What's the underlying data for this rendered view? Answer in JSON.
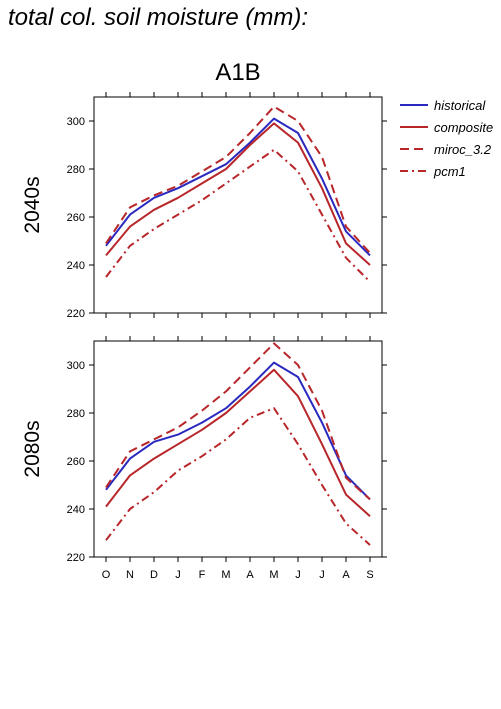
{
  "page": {
    "title": "total col. soil moisture (mm):"
  },
  "chart_data": {
    "type": "line",
    "scenario": "A1B",
    "categories": [
      "O",
      "N",
      "D",
      "J",
      "F",
      "M",
      "A",
      "M",
      "J",
      "J",
      "A",
      "S"
    ],
    "ylim": [
      220,
      310
    ],
    "yticks": [
      220,
      240,
      260,
      280,
      300
    ],
    "legend_position": "right",
    "series_styles": [
      {
        "name": "historical",
        "color": "#2a2ac0",
        "dash": ""
      },
      {
        "name": "composite",
        "color": "#b8262a",
        "dash": ""
      },
      {
        "name": "miroc_3.2",
        "color": "#b8262a",
        "dash": "9,5"
      },
      {
        "name": "pcm1",
        "color": "#b8262a",
        "dash": "8,4,2,4"
      }
    ],
    "panels": [
      {
        "label": "2040s",
        "series": [
          {
            "name": "historical",
            "values": [
              248,
              261,
              268,
              272,
              277,
              282,
              291,
              301,
              295,
              276,
              254,
              244
            ]
          },
          {
            "name": "composite",
            "values": [
              244,
              256,
              263,
              268,
              274,
              280,
              290,
              299,
              291,
              272,
              249,
              240
            ]
          },
          {
            "name": "miroc_3.2",
            "values": [
              249,
              264,
              269,
              273,
              279,
              285,
              295,
              306,
              300,
              285,
              256,
              245
            ]
          },
          {
            "name": "pcm1",
            "values": [
              235,
              248,
              255,
              261,
              267,
              274,
              281,
              288,
              279,
              261,
              243,
              233
            ]
          }
        ]
      },
      {
        "label": "2080s",
        "series": [
          {
            "name": "historical",
            "values": [
              248,
              261,
              268,
              271,
              276,
              282,
              291,
              301,
              295,
              276,
              254,
              244
            ]
          },
          {
            "name": "composite",
            "values": [
              241,
              254,
              261,
              267,
              273,
              280,
              289,
              298,
              287,
              267,
              246,
              237
            ]
          },
          {
            "name": "miroc_3.2",
            "values": [
              249,
              264,
              269,
              274,
              281,
              289,
              299,
              309,
              300,
              281,
              253,
              244
            ]
          },
          {
            "name": "pcm1",
            "values": [
              227,
              240,
              247,
              256,
              262,
              269,
              278,
              282,
              267,
              250,
              234,
              225
            ]
          }
        ]
      }
    ]
  }
}
